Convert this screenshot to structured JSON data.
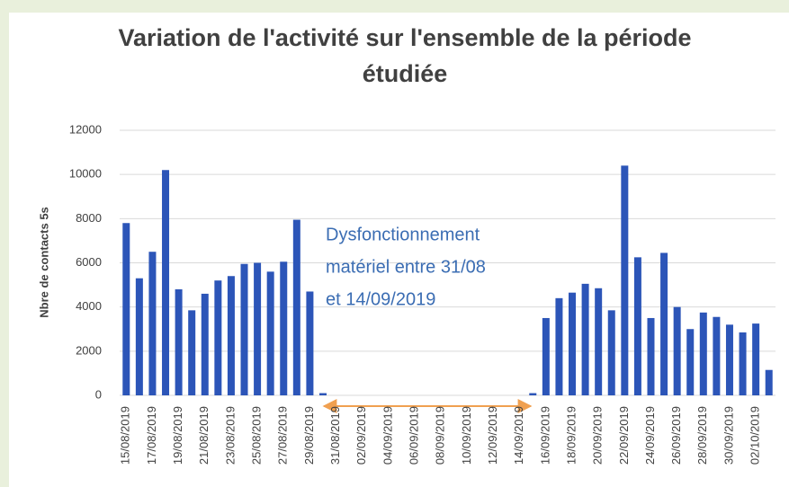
{
  "chart_data": {
    "type": "bar",
    "title": "Variation de l'activité sur l'ensemble de la période étudiée",
    "y_label": "Nbre de contacts 5s",
    "annotation": [
      "Dysfonctionnement",
      "matériel entre 31/08",
      "et 14/09/2019"
    ],
    "categories": [
      "15/08/2019",
      null,
      "17/08/2019",
      null,
      "19/08/2019",
      null,
      "21/08/2019",
      null,
      "23/08/2019",
      null,
      "25/08/2019",
      null,
      "27/08/2019",
      null,
      "29/08/2019",
      null,
      "31/08/2019",
      null,
      "02/09/2019",
      null,
      "04/09/2019",
      null,
      "06/09/2019",
      null,
      "08/09/2019",
      null,
      "10/09/2019",
      null,
      "12/09/2019",
      null,
      "14/09/2019",
      null,
      "16/09/2019",
      null,
      "18/09/2019",
      null,
      "20/09/2019",
      null,
      "22/09/2019",
      null,
      "24/09/2019",
      null,
      "26/09/2019",
      null,
      "28/09/2019",
      null,
      "30/09/2019",
      null,
      "02/10/2019",
      null
    ],
    "values": [
      7800,
      5300,
      6500,
      10200,
      4800,
      3850,
      4600,
      5200,
      5400,
      5950,
      6000,
      5600,
      6050,
      7950,
      4700,
      100,
      0,
      0,
      0,
      0,
      0,
      0,
      0,
      0,
      0,
      0,
      0,
      0,
      0,
      0,
      0,
      100,
      3500,
      4400,
      4650,
      5050,
      4850,
      3850,
      10400,
      6250,
      3500,
      6450,
      4000,
      3000,
      3750,
      3550,
      3200,
      2850,
      3250,
      1150
    ],
    "color": "#2c55b8",
    "ylim": [
      0,
      12000
    ],
    "yticks": [
      0,
      2000,
      4000,
      6000,
      8000,
      10000,
      12000
    ],
    "grid": true
  }
}
